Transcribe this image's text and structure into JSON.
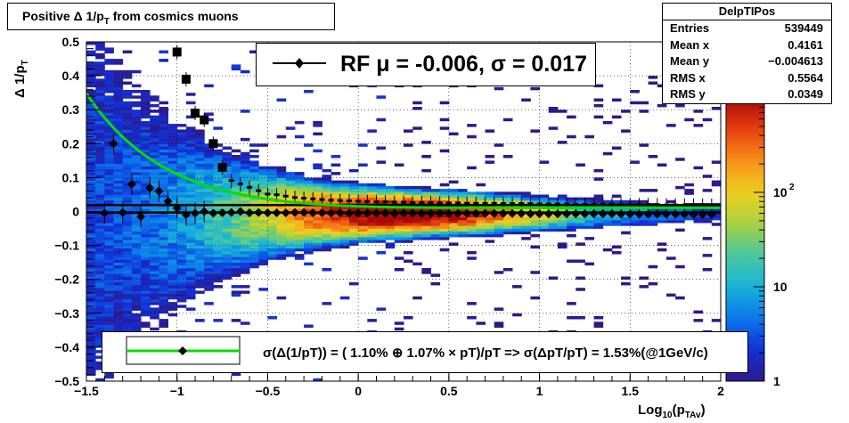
{
  "chart_data": {
    "type": "heatmap",
    "title": "Positive Δ 1/p_T from cosmics muons",
    "title_main": "Positive Δ 1/p",
    "title_sub": "T",
    "title_tail": " from cosmics muons",
    "xlabel": "Log_10(p_TAv)",
    "xlabel_parts": {
      "a": "Log",
      "b": "10",
      "c": "(p",
      "d": "TAv",
      "e": ")"
    },
    "ylabel": "Δ 1/p_T",
    "ylabel_parts": {
      "a": "Δ 1/p",
      "b": "T"
    },
    "xlim": [
      -1.5,
      2.0
    ],
    "ylim": [
      -0.5,
      0.5
    ],
    "x_ticks": [
      -1.5,
      -1,
      -0.5,
      0,
      0.5,
      1,
      1.5,
      2
    ],
    "x_tick_labels": [
      "−1.5",
      "−1",
      "−0.5",
      "0",
      "0.5",
      "1",
      "1.5",
      "2"
    ],
    "y_ticks": [
      -0.5,
      -0.4,
      -0.3,
      -0.2,
      -0.1,
      0,
      0.1,
      0.2,
      0.3,
      0.4,
      0.5
    ],
    "y_tick_labels": [
      "−0.5",
      "−0.4",
      "−0.3",
      "−0.2",
      "−0.1",
      "0",
      "0.1",
      "0.2",
      "0.3",
      "0.4",
      "0.5"
    ],
    "z_scale": "log",
    "z_range": [
      1,
      1000
    ],
    "z_tick_labels": [
      {
        "v": 1,
        "base": "1",
        "exp": ""
      },
      {
        "v": 10,
        "base": "10",
        "exp": ""
      },
      {
        "v": 100,
        "base": "10",
        "exp": "2"
      }
    ],
    "grid": true,
    "stats": {
      "name": "DelpTIPos",
      "rows": [
        {
          "label": "Entries",
          "value": "539449"
        },
        {
          "label": "Mean x",
          "value": "0.4161"
        },
        {
          "label": "Mean y",
          "value": "−0.004613"
        },
        {
          "label": "RMS x",
          "value": "0.5564"
        },
        {
          "label": "RMS y",
          "value": "0.0349"
        }
      ]
    },
    "legend_top": "RF μ = -0.006, σ =   0.017",
    "legend_bottom": "σ(Δ(1/pT)) = ( 1.10% ⊕  1.07% × pT)/pT => σ(ΔpT/pT) =  1.53%(@1GeV/c)",
    "mean_series": {
      "name": "mean",
      "x": [
        -1.4,
        -1.35,
        -1.3,
        -1.25,
        -1.2,
        -1.15,
        -1.1,
        -1.05,
        -1.0,
        -0.95,
        -0.9,
        -0.85,
        -0.8,
        -0.75,
        -0.7,
        -0.65,
        -0.6,
        -0.55,
        -0.5,
        -0.45,
        -0.4,
        -0.35,
        -0.3,
        -0.25,
        -0.2,
        -0.15,
        -0.1,
        -0.05,
        0.0,
        0.05,
        0.1,
        0.15,
        0.2,
        0.25,
        0.3,
        0.35,
        0.4,
        0.45,
        0.5,
        0.55,
        0.6,
        0.65,
        0.7,
        0.75,
        0.8,
        0.85,
        0.9,
        0.95,
        1.0,
        1.05,
        1.1,
        1.15,
        1.2,
        1.25,
        1.3,
        1.35,
        1.4,
        1.45,
        1.5,
        1.55,
        1.6,
        1.65,
        1.7,
        1.75,
        1.8,
        1.85,
        1.9,
        1.95
      ],
      "y": [
        -0.005,
        0.2,
        -0.003,
        0.08,
        -0.015,
        0.07,
        0.06,
        0.03,
        0.01,
        -0.01,
        -0.005,
        0.0,
        -0.005,
        -0.004,
        -0.003,
        0.0,
        -0.004,
        -0.003,
        -0.004,
        -0.004,
        -0.004,
        -0.003,
        -0.003,
        -0.004,
        -0.004,
        -0.005,
        -0.004,
        -0.005,
        -0.005,
        -0.005,
        -0.005,
        -0.005,
        -0.006,
        -0.005,
        -0.005,
        -0.006,
        -0.006,
        -0.006,
        -0.006,
        -0.006,
        -0.006,
        -0.006,
        -0.006,
        -0.006,
        -0.006,
        -0.006,
        -0.006,
        -0.007,
        -0.007,
        -0.007,
        -0.007,
        -0.007,
        -0.007,
        -0.007,
        -0.007,
        -0.007,
        -0.007,
        -0.008,
        -0.008,
        -0.008,
        -0.008,
        -0.008,
        -0.008,
        -0.008,
        -0.008,
        -0.009,
        -0.009,
        -0.009
      ]
    },
    "sigma_series": {
      "name": "sigma",
      "x": [
        -1.0,
        -0.95,
        -0.9,
        -0.85,
        -0.8,
        -0.75,
        -0.7,
        -0.65,
        -0.6,
        -0.55,
        -0.5,
        -0.45,
        -0.4,
        -0.35,
        -0.3,
        -0.25,
        -0.2,
        -0.15,
        -0.1,
        -0.05,
        0.0,
        0.05,
        0.1,
        0.15,
        0.2,
        0.25,
        0.3,
        0.35,
        0.4,
        0.45,
        0.5,
        0.55,
        0.6,
        0.65,
        0.7,
        0.75,
        0.8,
        0.85,
        0.9,
        0.95,
        1.0,
        1.05,
        1.1,
        1.15,
        1.2,
        1.25,
        1.3,
        1.35,
        1.4,
        1.45,
        1.5,
        1.55,
        1.6,
        1.65,
        1.7,
        1.75,
        1.8,
        1.85,
        1.9,
        1.95
      ],
      "y": [
        0.47,
        0.39,
        0.29,
        0.27,
        0.2,
        0.13,
        0.09,
        0.08,
        0.07,
        0.06,
        0.05,
        0.048,
        0.044,
        0.04,
        0.038,
        0.036,
        0.034,
        0.032,
        0.031,
        0.03,
        0.029,
        0.028,
        0.027,
        0.027,
        0.026,
        0.026,
        0.025,
        0.025,
        0.025,
        0.024,
        0.024,
        0.024,
        0.023,
        0.023,
        0.023,
        0.023,
        0.022,
        0.022,
        0.022,
        0.022,
        0.021,
        0.021,
        0.021,
        0.021,
        0.02,
        0.02,
        0.02,
        0.02,
        0.02,
        0.019,
        0.019,
        0.019,
        0.019,
        0.019,
        0.018,
        0.018,
        0.018,
        0.018,
        0.018,
        0.017
      ]
    },
    "fit": {
      "a": 0.011,
      "b": 0.0107,
      "mu": -0.006,
      "sigma": 0.017
    },
    "colors": {
      "fit_line": "#00e000",
      "markers": "#000000",
      "palette": [
        "#2c1a8c",
        "#1230d8",
        "#0a78ec",
        "#18b4d8",
        "#48c8a0",
        "#a8d040",
        "#f0d020",
        "#f89018",
        "#e84010",
        "#a80808"
      ]
    }
  }
}
